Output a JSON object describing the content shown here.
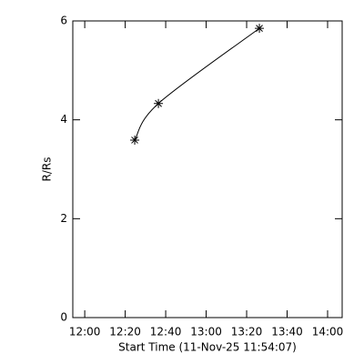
{
  "chart_data": {
    "type": "line",
    "x_label": "Start Time (11-Nov-25 11:54:07)",
    "y_label": "R/Rs",
    "x": [
      744.7,
      756.4,
      806.3
    ],
    "values": [
      3.59,
      4.33,
      5.85
    ],
    "color": "#000000",
    "xlim": [
      714.1,
      847.2
    ],
    "xticks": [
      {
        "value": 720,
        "label": "12:00"
      },
      {
        "value": 740,
        "label": "12:20"
      },
      {
        "value": 760,
        "label": "12:40"
      },
      {
        "value": 780,
        "label": "13:00"
      },
      {
        "value": 800,
        "label": "13:20"
      },
      {
        "value": 820,
        "label": "13:40"
      },
      {
        "value": 840,
        "label": "14:00"
      }
    ],
    "ylim": [
      0,
      6
    ],
    "yticks": [
      0,
      2,
      4,
      6
    ]
  }
}
